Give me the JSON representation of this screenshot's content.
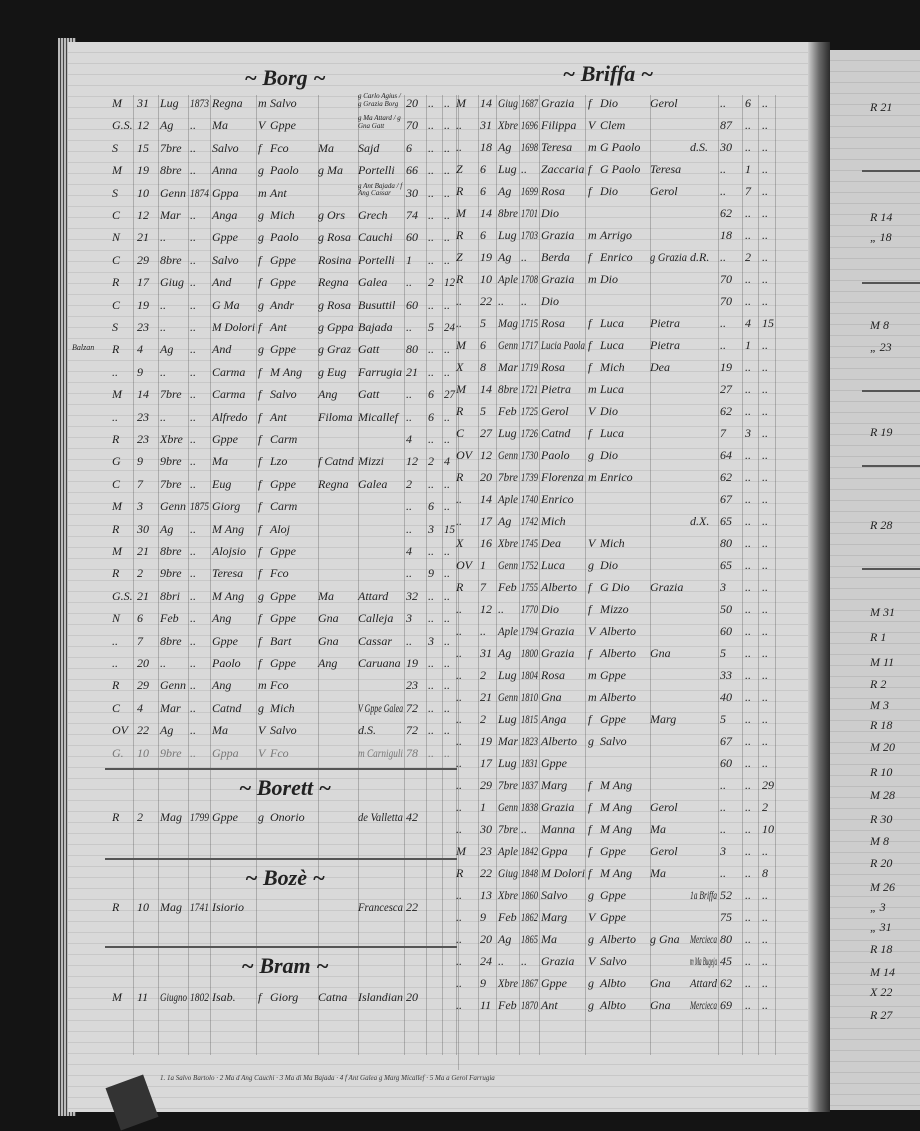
{
  "left_page": {
    "sections": [
      {
        "title": "~ Borg ~",
        "rows": [
          [
            "M",
            "31",
            "Lug",
            "1873",
            "Regna",
            "m",
            "Salvo",
            "",
            "g Carlo Agius / g Grazia Borg",
            "20",
            "..",
            ".."
          ],
          [
            "G.S.",
            "12",
            "Ag",
            "..",
            "Ma",
            "V",
            "Gppe",
            "",
            "g Ma Attard / g Gna Gatt",
            "70",
            "..",
            ".."
          ],
          [
            "S",
            "15",
            "7bre",
            "..",
            "Salvo",
            "f",
            "Fco",
            "Ma",
            "Sajd",
            "6",
            "..",
            ".."
          ],
          [
            "M",
            "19",
            "8bre",
            "..",
            "Anna",
            "g",
            "Paolo",
            "g Ma",
            "Portelli",
            "66",
            "..",
            ".."
          ],
          [
            "S",
            "10",
            "Genn",
            "1874",
            "Gppa",
            "m",
            "Ant",
            "",
            "g Ant Bajada / f Ang Cassar",
            "30",
            "..",
            ".."
          ],
          [
            "C",
            "12",
            "Mar",
            "..",
            "Anga",
            "g",
            "Mich",
            "g Ors",
            "Grech",
            "74",
            "..",
            ".."
          ],
          [
            "N",
            "21",
            "..",
            "..",
            "Gppe",
            "g",
            "Paolo",
            "g Rosa",
            "Cauchi",
            "60",
            "..",
            ".."
          ],
          [
            "C",
            "29",
            "8bre",
            "..",
            "Salvo",
            "f",
            "Gppe",
            "Rosina",
            "Portelli",
            "1",
            "..",
            ".."
          ],
          [
            "R",
            "17",
            "Giug",
            "..",
            "And",
            "f",
            "Gppe",
            "Regna",
            "Galea",
            "..",
            "2",
            "12"
          ],
          [
            "C",
            "19",
            "..",
            "..",
            "G Ma",
            "g",
            "Andr",
            "g Rosa",
            "Busuttil",
            "60",
            "..",
            ".."
          ],
          [
            "S",
            "23",
            "..",
            "..",
            "M Dolori",
            "f",
            "Ant",
            "g Gppa",
            "Bajada",
            "..",
            "5",
            "24"
          ],
          [
            "R",
            "4",
            "Ag",
            "..",
            "And",
            "g",
            "Gppe",
            "g Graz",
            "Gatt",
            "80",
            "..",
            ".."
          ],
          [
            "..",
            "9",
            "..",
            "..",
            "Carma",
            "f",
            "M Ang",
            "g Eug",
            "Farrugia",
            "21",
            "..",
            ".."
          ],
          [
            "M",
            "14",
            "7bre",
            "..",
            "Carma",
            "f",
            "Salvo",
            "Ang",
            "Gatt",
            "..",
            "6",
            "27"
          ],
          [
            "..",
            "23",
            "..",
            "..",
            "Alfredo",
            "f",
            "Ant",
            "Filoma",
            "Micallef",
            "..",
            "6",
            ".."
          ],
          [
            "R",
            "23",
            "Xbre",
            "..",
            "Gppe",
            "f",
            "Carm",
            "",
            "",
            "4",
            "..",
            ".."
          ],
          [
            "G",
            "9",
            "9bre",
            "..",
            "Ma",
            "f",
            "Lzo",
            "f Catnd",
            "Mizzi",
            "12",
            "2",
            "4"
          ],
          [
            "C",
            "7",
            "7bre",
            "..",
            "Eug",
            "f",
            "Gppe",
            "Regna",
            "Galea",
            "2",
            "..",
            ".."
          ],
          [
            "M",
            "3",
            "Genn",
            "1875",
            "Giorg",
            "f",
            "Carm",
            "",
            "",
            "..",
            "6",
            ".."
          ],
          [
            "R",
            "30",
            "Ag",
            "..",
            "M Ang",
            "f",
            "Aloj",
            "",
            "",
            "..",
            "3",
            "15"
          ],
          [
            "M",
            "21",
            "8bre",
            "..",
            "Alojsio",
            "f",
            "Gppe",
            "",
            "",
            "4",
            "..",
            ".."
          ],
          [
            "R",
            "2",
            "9bre",
            "..",
            "Teresa",
            "f",
            "Fco",
            "",
            "",
            "..",
            "9",
            ".."
          ],
          [
            "G.S.",
            "21",
            "8bri",
            "..",
            "M Ang",
            "g",
            "Gppe",
            "Ma",
            "Attard",
            "32",
            "..",
            ".."
          ],
          [
            "N",
            "6",
            "Feb",
            "..",
            "Ang",
            "f",
            "Gppe",
            "Gna",
            "Calleja",
            "3",
            "..",
            ".."
          ],
          [
            "..",
            "7",
            "8bre",
            "..",
            "Gppe",
            "f",
            "Bart",
            "Gna",
            "Cassar",
            "..",
            "3",
            ".."
          ],
          [
            "..",
            "20",
            "..",
            "..",
            "Paolo",
            "f",
            "Gppe",
            "Ang",
            "Caruana",
            "19",
            "..",
            ".."
          ],
          [
            "R",
            "29",
            "Genn",
            "..",
            "Ang",
            "m",
            "Fco",
            "",
            "",
            "23",
            "..",
            ".."
          ],
          [
            "C",
            "4",
            "Mar",
            "..",
            "Catnd",
            "g",
            "Mich",
            "",
            "V Gppe Galea",
            "72",
            "..",
            ".."
          ],
          [
            "OV",
            "22",
            "Ag",
            "..",
            "Ma",
            "V",
            "Salvo",
            "",
            "d.S.",
            "72",
            "..",
            ".."
          ],
          [
            "G.",
            "10",
            "9bre",
            "..",
            "Gppa",
            "V",
            "Fco",
            "",
            "m Carniguli",
            "78",
            "..",
            ".."
          ]
        ]
      },
      {
        "title": "~ Borett ~",
        "rows": [
          [
            "R",
            "2",
            "Mag",
            "1799",
            "Gppe",
            "g",
            "Onorio",
            "",
            "de Valletta",
            "42",
            "",
            ""
          ]
        ]
      },
      {
        "title": "~ Bozè ~",
        "rows": [
          [
            "R",
            "10",
            "Mag",
            "1741",
            "Isiorio",
            "",
            "",
            "",
            "Francesca",
            "22",
            "",
            ""
          ]
        ]
      },
      {
        "title": "~ Bram ~",
        "rows": [
          [
            "M",
            "11",
            "Giugno",
            "1802",
            "Isab.",
            "f",
            "Giorg",
            "Catna",
            "Islandian",
            "20",
            "",
            ""
          ]
        ]
      }
    ]
  },
  "right_page": {
    "title": "~ Briffa ~",
    "rows": [
      [
        "M",
        "14",
        "Giug",
        "1687",
        "Grazia",
        "f",
        "Dio",
        "Gerol",
        "",
        "..",
        "6",
        ".."
      ],
      [
        "..",
        "31",
        "Xbre",
        "1696",
        "Filippa",
        "V",
        "Clem",
        "",
        "",
        "87",
        "..",
        ".."
      ],
      [
        "..",
        "18",
        "Ag",
        "1698",
        "Teresa",
        "m",
        "G Paolo",
        "",
        "d.S.",
        "30",
        "..",
        ".."
      ],
      [
        "Z",
        "6",
        "Lug",
        "..",
        "Zaccaria",
        "f",
        "G Paolo",
        "Teresa",
        "",
        "..",
        "1",
        ".."
      ],
      [
        "R",
        "6",
        "Ag",
        "1699",
        "Rosa",
        "f",
        "Dio",
        "Gerol",
        "",
        "..",
        "7",
        ".."
      ],
      [
        "M",
        "14",
        "8bre",
        "1701",
        "Dio",
        "",
        "",
        "",
        "",
        "62",
        "..",
        ".."
      ],
      [
        "R",
        "6",
        "Lug",
        "1703",
        "Grazia",
        "m",
        "Arrigo",
        "",
        "",
        "18",
        "..",
        ".."
      ],
      [
        "Z",
        "19",
        "Ag",
        "..",
        "Berda",
        "f",
        "Enrico",
        "g Grazia",
        "d.R.",
        "..",
        "2",
        ".."
      ],
      [
        "R",
        "10",
        "Aple",
        "1708",
        "Grazia",
        "m",
        "Dio",
        "",
        "",
        "70",
        "..",
        ".."
      ],
      [
        "..",
        "22",
        "..",
        "..",
        "Dio",
        "",
        "",
        "",
        "",
        "70",
        "..",
        ".."
      ],
      [
        "..",
        "5",
        "Mag",
        "1715",
        "Rosa",
        "f",
        "Luca",
        "Pietra",
        "",
        "..",
        "4",
        "15"
      ],
      [
        "M",
        "6",
        "Genn",
        "1717",
        "Lucia Paola",
        "f",
        "Luca",
        "Pietra",
        "",
        "..",
        "1",
        ".."
      ],
      [
        "X",
        "8",
        "Mar",
        "1719",
        "Rosa",
        "f",
        "Mich",
        "Dea",
        "",
        "19",
        "..",
        ".."
      ],
      [
        "M",
        "14",
        "8bre",
        "1721",
        "Pietra",
        "m",
        "Luca",
        "",
        "",
        "27",
        "..",
        ".."
      ],
      [
        "R",
        "5",
        "Feb",
        "1725",
        "Gerol",
        "V",
        "Dio",
        "",
        "",
        "62",
        "..",
        ".."
      ],
      [
        "C",
        "27",
        "Lug",
        "1726",
        "Catnd",
        "f",
        "Luca",
        "",
        "",
        "7",
        "3",
        ".."
      ],
      [
        "OV",
        "12",
        "Genn",
        "1730",
        "Paolo",
        "g",
        "Dio",
        "",
        "",
        "64",
        "..",
        ".."
      ],
      [
        "R",
        "20",
        "7bre",
        "1739",
        "Florenza",
        "m",
        "Enrico",
        "",
        "",
        "62",
        "..",
        ".."
      ],
      [
        "..",
        "14",
        "Aple",
        "1740",
        "Enrico",
        "",
        "",
        "",
        "",
        "67",
        "..",
        ".."
      ],
      [
        "..",
        "17",
        "Ag",
        "1742",
        "Mich",
        "",
        "",
        "",
        "d.X.",
        "65",
        "..",
        ".."
      ],
      [
        "X",
        "16",
        "Xbre",
        "1745",
        "Dea",
        "V",
        "Mich",
        "",
        "",
        "80",
        "..",
        ".."
      ],
      [
        "OV",
        "1",
        "Genn",
        "1752",
        "Luca",
        "g",
        "Dio",
        "",
        "",
        "65",
        "..",
        ".."
      ],
      [
        "R",
        "7",
        "Feb",
        "1755",
        "Alberto",
        "f",
        "G Dio",
        "Grazia",
        "",
        "3",
        "..",
        ".."
      ],
      [
        "..",
        "12",
        "..",
        "1770",
        "Dio",
        "f",
        "Mizzo",
        "",
        "",
        "50",
        "..",
        ".."
      ],
      [
        "..",
        "..",
        "Aple",
        "1794",
        "Grazia",
        "V",
        "Alberto",
        "",
        "",
        "60",
        "..",
        ".."
      ],
      [
        "..",
        "31",
        "Ag",
        "1800",
        "Grazia",
        "f",
        "Alberto",
        "Gna",
        "",
        "5",
        "..",
        ".."
      ],
      [
        "..",
        "2",
        "Lug",
        "1804",
        "Rosa",
        "m",
        "Gppe",
        "",
        "",
        "33",
        "..",
        ".."
      ],
      [
        "..",
        "21",
        "Genn",
        "1810",
        "Gna",
        "m",
        "Alberto",
        "",
        "",
        "40",
        "..",
        ".."
      ],
      [
        "..",
        "2",
        "Lug",
        "1815",
        "Anga",
        "f",
        "Gppe",
        "Marg",
        "",
        "5",
        "..",
        ".."
      ],
      [
        "..",
        "19",
        "Mar",
        "1823",
        "Alberto",
        "g",
        "Salvo",
        "",
        "",
        "67",
        "..",
        ".."
      ],
      [
        "..",
        "17",
        "Lug",
        "1831",
        "Gppe",
        "",
        "",
        "",
        "",
        "60",
        "..",
        ".."
      ],
      [
        "..",
        "29",
        "7bre",
        "1837",
        "Marg",
        "f",
        "M Ang",
        "",
        "",
        "..",
        "..",
        "29"
      ],
      [
        "..",
        "1",
        "Genn",
        "1838",
        "Grazia",
        "f",
        "M Ang",
        "Gerol",
        "",
        "..",
        "..",
        "2"
      ],
      [
        "..",
        "30",
        "7bre",
        "..",
        "Manna",
        "f",
        "M Ang",
        "Ma",
        "",
        "..",
        "..",
        "10"
      ],
      [
        "M",
        "23",
        "Aple",
        "1842",
        "Gppa",
        "f",
        "Gppe",
        "Gerol",
        "",
        "3",
        "..",
        ".."
      ],
      [
        "R",
        "22",
        "Giug",
        "1848",
        "M Dolori",
        "f",
        "M Ang",
        "Ma",
        "",
        "..",
        "..",
        "8"
      ],
      [
        "..",
        "13",
        "Xbre",
        "1860",
        "Salvo",
        "g",
        "Gppe",
        "",
        "1a Briffa",
        "52",
        "..",
        ".."
      ],
      [
        "..",
        "9",
        "Feb",
        "1862",
        "Marg",
        "V",
        "Gppe",
        "",
        "",
        "75",
        "..",
        ".."
      ],
      [
        "..",
        "20",
        "Ag",
        "1865",
        "Ma",
        "g",
        "Alberto",
        "g Gna",
        "Mercieca",
        "80",
        "..",
        ".."
      ],
      [
        "..",
        "24",
        "..",
        "..",
        "Grazia",
        "V",
        "Salvo",
        "",
        "m Ma Bugeja",
        "45",
        "..",
        ".."
      ],
      [
        "..",
        "9",
        "Xbre",
        "1867",
        "Gppe",
        "g",
        "Albto",
        "Gna",
        "Attard",
        "62",
        "..",
        ".."
      ],
      [
        "..",
        "11",
        "Feb",
        "1870",
        "Ant",
        "g",
        "Albto",
        "Gna",
        "Mercieca",
        "69",
        "..",
        ".."
      ]
    ]
  },
  "next_page_fragments": [
    "R 21",
    "R 14",
    "„ 18",
    "M 8",
    "„ 23",
    "R 19",
    "R 28",
    "M 31",
    "R 1",
    "M 11",
    "R 2",
    "M 3",
    "R 18",
    "M 20",
    "R 10",
    "M 28",
    "R 30",
    "M 8",
    "R 20",
    "M 26",
    "„ 3",
    "„ 31",
    "R 18",
    "M 14",
    "X 22",
    "R 27"
  ],
  "footer_note": "1. 1a Salvo Bartolo · 2 Ma d Ang Cauchi · 3 Ma di Ma Bajada · 4 f Ant Galea g Marg Micallef · 5 Ma a Gerol Farrugia",
  "margin_note": "Balzan"
}
